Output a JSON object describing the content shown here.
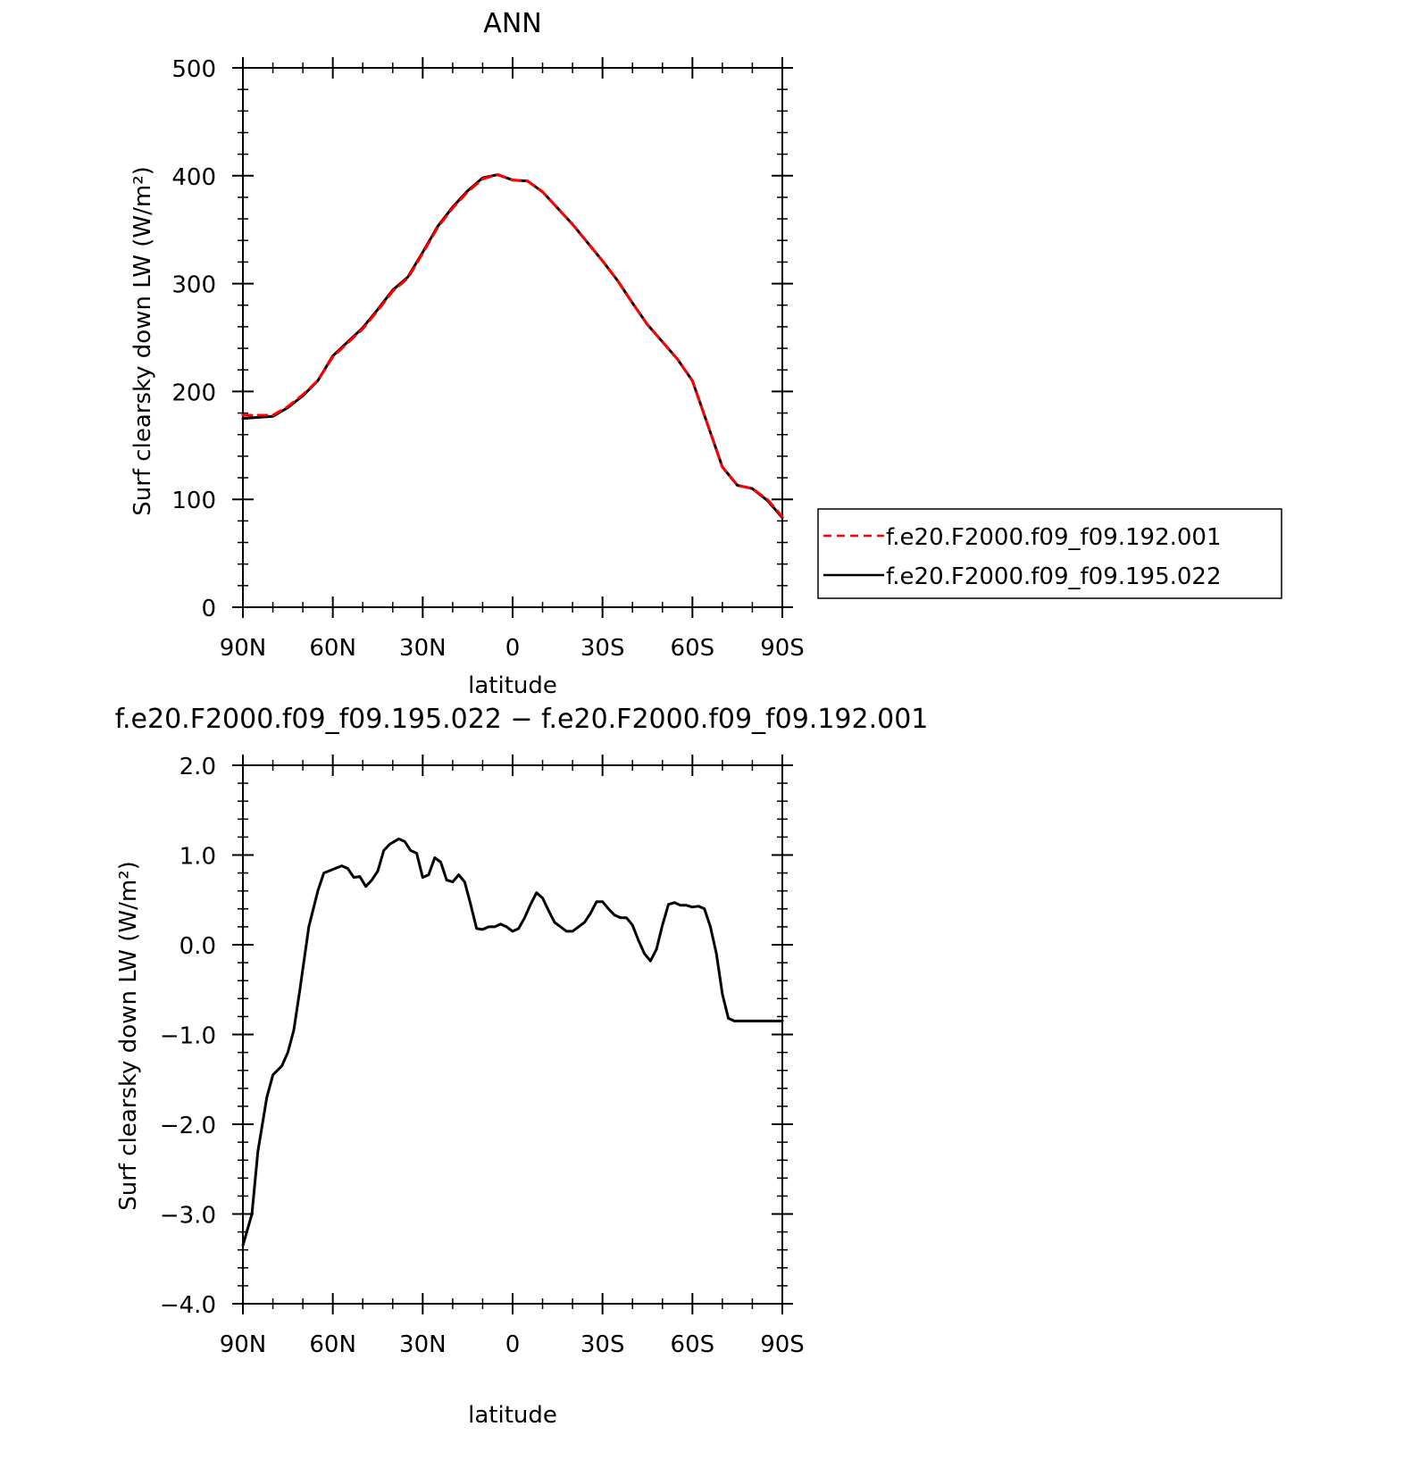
{
  "chart_data": [
    {
      "type": "line",
      "title": "ANN",
      "xlabel": "latitude",
      "ylabel": "Surf clearsky down LW (W/m²)",
      "xlim": [
        90,
        -90
      ],
      "ylim": [
        0,
        500
      ],
      "xticks": [
        {
          "value": 90,
          "label": "90N"
        },
        {
          "value": 60,
          "label": "60N"
        },
        {
          "value": 30,
          "label": "30N"
        },
        {
          "value": 0,
          "label": "0"
        },
        {
          "value": -30,
          "label": "30S"
        },
        {
          "value": -60,
          "label": "60S"
        },
        {
          "value": -90,
          "label": "90S"
        }
      ],
      "yticks": [
        {
          "value": 0,
          "label": "0"
        },
        {
          "value": 100,
          "label": "100"
        },
        {
          "value": 200,
          "label": "200"
        },
        {
          "value": 300,
          "label": "300"
        },
        {
          "value": 400,
          "label": "400"
        },
        {
          "value": 500,
          "label": "500"
        }
      ],
      "legend_position": "right",
      "series": [
        {
          "name": "f.e20.F2000.f09_f09.192.001",
          "color": "#ff0000",
          "dashed": true,
          "x": [
            90,
            85,
            80,
            75,
            70,
            65,
            60,
            55,
            50,
            45,
            40,
            35,
            30,
            25,
            20,
            15,
            10,
            5,
            0,
            -5,
            -10,
            -15,
            -20,
            -25,
            -30,
            -35,
            -40,
            -45,
            -50,
            -55,
            -60,
            -65,
            -70,
            -75,
            -80,
            -85,
            -90
          ],
          "y": [
            178,
            178,
            178,
            186,
            197,
            210,
            232,
            245,
            258,
            275,
            293,
            305,
            328,
            352,
            370,
            385,
            397,
            401,
            396,
            395,
            385,
            370,
            355,
            338,
            321,
            303,
            282,
            262,
            246,
            230,
            210,
            170,
            130,
            113,
            110,
            100,
            84
          ]
        },
        {
          "name": "f.e20.F2000.f09_f09.195.022",
          "color": "#000000",
          "dashed": false,
          "x": [
            90,
            85,
            80,
            75,
            70,
            65,
            60,
            55,
            50,
            45,
            40,
            35,
            30,
            25,
            20,
            15,
            10,
            5,
            0,
            -5,
            -10,
            -15,
            -20,
            -25,
            -30,
            -35,
            -40,
            -45,
            -50,
            -55,
            -60,
            -65,
            -70,
            -75,
            -80,
            -85,
            -90
          ],
          "y": [
            175,
            176,
            177,
            185,
            196,
            210,
            233,
            246,
            259,
            276,
            294,
            306,
            329,
            353,
            371,
            386,
            398,
            401,
            396,
            395,
            385,
            370,
            355,
            338,
            321,
            303,
            282,
            262,
            246,
            230,
            210,
            170,
            130,
            113,
            110,
            99,
            83
          ]
        }
      ]
    },
    {
      "type": "line",
      "title": "f.e20.F2000.f09_f09.195.022 − f.e20.F2000.f09_f09.192.001",
      "xlabel": "latitude",
      "ylabel": "Surf clearsky down LW (W/m²)",
      "xlim": [
        90,
        -90
      ],
      "ylim": [
        -4,
        2
      ],
      "xticks": [
        {
          "value": 90,
          "label": "90N"
        },
        {
          "value": 60,
          "label": "60N"
        },
        {
          "value": 30,
          "label": "30N"
        },
        {
          "value": 0,
          "label": "0"
        },
        {
          "value": -30,
          "label": "30S"
        },
        {
          "value": -60,
          "label": "60S"
        },
        {
          "value": -90,
          "label": "90S"
        }
      ],
      "yticks": [
        {
          "value": -4,
          "label": "−4.0"
        },
        {
          "value": -3,
          "label": "−3.0"
        },
        {
          "value": -2,
          "label": "−2.0"
        },
        {
          "value": -1,
          "label": "−1.0"
        },
        {
          "value": 0,
          "label": "0.0"
        },
        {
          "value": 1,
          "label": "1.0"
        },
        {
          "value": 2,
          "label": "2.0"
        }
      ],
      "series": [
        {
          "color": "#000000",
          "dashed": false,
          "x": [
            90,
            87,
            85,
            82,
            80,
            77,
            75,
            73,
            71,
            68,
            65,
            63,
            60,
            57,
            55,
            53,
            51,
            49,
            47,
            45,
            43,
            41,
            38,
            36,
            34,
            32,
            30,
            28,
            26,
            24,
            22,
            20,
            18,
            16,
            14,
            12,
            10,
            8,
            6,
            4,
            2,
            0,
            -2,
            -4,
            -6,
            -8,
            -10,
            -12,
            -14,
            -16,
            -18,
            -20,
            -22,
            -24,
            -26,
            -28,
            -30,
            -32,
            -34,
            -36,
            -38,
            -40,
            -42,
            -44,
            -46,
            -48,
            -50,
            -52,
            -54,
            -56,
            -58,
            -60,
            -62,
            -64,
            -66,
            -68,
            -70,
            -72,
            -74,
            -76,
            -78,
            -80,
            -82,
            -84,
            -86,
            -88,
            -90
          ],
          "y": [
            -3.35,
            -3.0,
            -2.3,
            -1.7,
            -1.45,
            -1.35,
            -1.2,
            -0.95,
            -0.5,
            0.2,
            0.6,
            0.8,
            0.84,
            0.88,
            0.85,
            0.75,
            0.76,
            0.65,
            0.72,
            0.82,
            1.05,
            1.12,
            1.18,
            1.15,
            1.05,
            1.02,
            0.75,
            0.78,
            0.97,
            0.92,
            0.72,
            0.7,
            0.78,
            0.7,
            0.45,
            0.18,
            0.17,
            0.2,
            0.2,
            0.23,
            0.2,
            0.15,
            0.18,
            0.3,
            0.45,
            0.58,
            0.52,
            0.38,
            0.25,
            0.2,
            0.15,
            0.15,
            0.2,
            0.25,
            0.35,
            0.48,
            0.48,
            0.4,
            0.33,
            0.3,
            0.3,
            0.22,
            0.05,
            -0.1,
            -0.18,
            -0.05,
            0.22,
            0.45,
            0.47,
            0.44,
            0.44,
            0.42,
            0.43,
            0.4,
            0.2,
            -0.1,
            -0.55,
            -0.82,
            -0.85,
            -0.85,
            -0.85,
            -0.85,
            -0.85,
            -0.85,
            -0.85,
            -0.85,
            -0.85
          ]
        }
      ]
    }
  ]
}
